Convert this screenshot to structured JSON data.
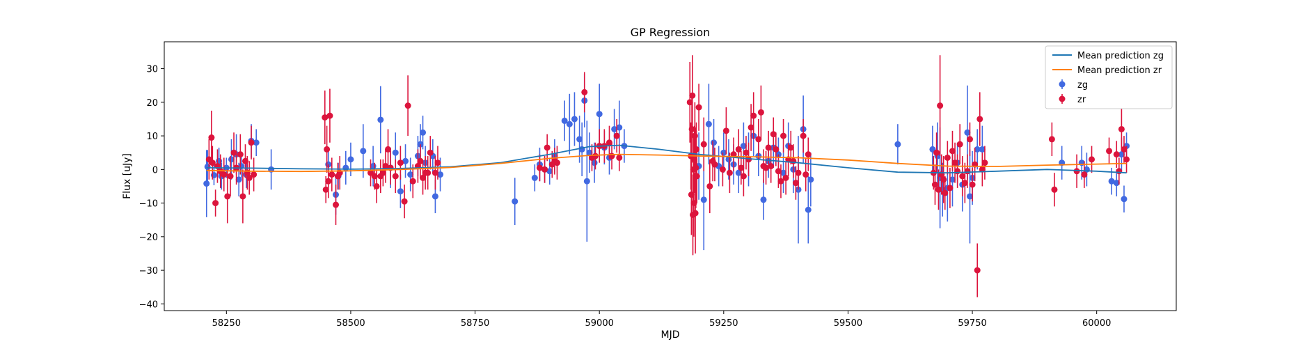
{
  "chart_data": {
    "type": "scatter",
    "title": "GP Regression",
    "xlabel": "MJD",
    "ylabel": "Flux [uJy]",
    "xlim": [
      58125,
      60160
    ],
    "ylim": [
      -42,
      38
    ],
    "grid": false,
    "legend_placement": "top-right",
    "x_ticks": [
      58250,
      58500,
      58750,
      59000,
      59250,
      59500,
      59750,
      60000
    ],
    "x_tick_labels": [
      "58250",
      "58500",
      "58750",
      "59000",
      "59250",
      "59500",
      "59750",
      "60000"
    ],
    "y_ticks": [
      -40,
      -30,
      -20,
      -10,
      0,
      10,
      20,
      30
    ],
    "y_tick_labels": [
      "−40",
      "−30",
      "−20",
      "−10",
      "0",
      "10",
      "20",
      "30"
    ],
    "colors": {
      "zg_points": "#4169e1",
      "zr_points": "#dc143c",
      "zg_line": "#1f77b4",
      "zr_line": "#ff7f0e"
    },
    "lines": [
      {
        "name": "Mean prediction zg",
        "color": "#1f77b4",
        "x": [
          58210,
          58300,
          58400,
          58500,
          58600,
          58700,
          58800,
          58900,
          58980,
          59040,
          59120,
          59200,
          59300,
          59400,
          59500,
          59600,
          59700,
          59800,
          59900,
          60000,
          60060
        ],
        "y": [
          0.5,
          0.4,
          0.2,
          0.1,
          0.3,
          0.8,
          2.0,
          4.5,
          6.8,
          7.2,
          6.0,
          4.5,
          3.2,
          2.0,
          0.5,
          -0.8,
          -1.0,
          -0.5,
          0.0,
          -0.5,
          -1.0
        ]
      },
      {
        "name": "Mean prediction zr",
        "color": "#ff7f0e",
        "x": [
          58210,
          58300,
          58400,
          58500,
          58600,
          58700,
          58800,
          58900,
          58980,
          59040,
          59120,
          59200,
          59300,
          59400,
          59500,
          59600,
          59700,
          59800,
          59900,
          60000,
          60060
        ],
        "y": [
          -0.3,
          -0.5,
          -0.6,
          -0.4,
          0.0,
          0.6,
          1.8,
          3.3,
          4.2,
          4.5,
          4.3,
          4.0,
          3.8,
          3.5,
          2.8,
          1.8,
          1.0,
          0.9,
          1.3,
          1.6,
          1.8
        ]
      }
    ],
    "series": [
      {
        "name": "zg",
        "color": "#4169e1",
        "x": [
          58210,
          58212,
          58225,
          58235,
          58240,
          58250,
          58260,
          58270,
          58275,
          58280,
          58290,
          58300,
          58310,
          58340,
          58455,
          58470,
          58475,
          58490,
          58500,
          58525,
          58545,
          58560,
          58580,
          58590,
          58600,
          58610,
          58620,
          58635,
          58640,
          58645,
          58650,
          58665,
          58670,
          58680,
          58830,
          58870,
          58880,
          58890,
          58900,
          58910,
          58930,
          58940,
          58950,
          58960,
          58965,
          58970,
          58975,
          58980,
          58990,
          59000,
          59010,
          59020,
          59030,
          59040,
          59050,
          59200,
          59210,
          59220,
          59230,
          59240,
          59250,
          59260,
          59270,
          59280,
          59290,
          59300,
          59310,
          59320,
          59330,
          59340,
          59350,
          59360,
          59370,
          59380,
          59390,
          59400,
          59410,
          59420,
          59425,
          59600,
          59670,
          59680,
          59685,
          59690,
          59700,
          59710,
          59720,
          59730,
          59740,
          59745,
          59750,
          59760,
          59770,
          59930,
          59970,
          59980,
          60030,
          60040,
          60050,
          60055,
          60060
        ],
        "y": [
          -4.2,
          0.8,
          -1.7,
          2.5,
          -2.0,
          0.5,
          3.0,
          4.5,
          -3.0,
          1.0,
          -1.5,
          8.5,
          8.0,
          0.0,
          1.5,
          -7.5,
          -2.0,
          0.5,
          3.0,
          5.5,
          1.0,
          14.8,
          0.5,
          5.0,
          -6.5,
          2.5,
          -1.5,
          4.0,
          7.5,
          11.0,
          2.0,
          4.0,
          -8.0,
          -1.5,
          -9.5,
          -2.5,
          1.5,
          0.0,
          -0.5,
          4.0,
          14.5,
          13.5,
          15.0,
          9.0,
          6.0,
          20.5,
          -3.5,
          5.0,
          2.0,
          16.5,
          6.5,
          3.5,
          12.0,
          12.5,
          7.0,
          1.0,
          -9.0,
          13.5,
          8.0,
          1.0,
          5.0,
          3.0,
          1.5,
          -1.0,
          7.0,
          3.0,
          10.0,
          4.0,
          -9.0,
          2.5,
          6.5,
          4.5,
          -1.0,
          7.0,
          0.0,
          -6.0,
          12.0,
          -12.0,
          -3.0,
          7.5,
          6.0,
          4.0,
          -2.5,
          -6.0,
          -5.5,
          -3.0,
          2.0,
          -4.5,
          11.0,
          -8.0,
          -2.5,
          6.0,
          6.0,
          2.0,
          2.0,
          0.0,
          -3.5,
          -4.0,
          4.5,
          -8.8,
          7.0
        ],
        "err": [
          10,
          5,
          3,
          4,
          4,
          3,
          6,
          6,
          5,
          4,
          4,
          5,
          4,
          6,
          5,
          6,
          4,
          5,
          5,
          8,
          6,
          10,
          6,
          6,
          5,
          5,
          5,
          6,
          6,
          5,
          5,
          5,
          5,
          5,
          7,
          4,
          5,
          4,
          4,
          5,
          6,
          9,
          8,
          7,
          8,
          8,
          18,
          6,
          6,
          9,
          5,
          5,
          6,
          8,
          5,
          10,
          15,
          12,
          7,
          6,
          6,
          6,
          6,
          6,
          7,
          8,
          6,
          6,
          6,
          5,
          6,
          5,
          6,
          7,
          7,
          16,
          10,
          10,
          8,
          6,
          7,
          10,
          15,
          8,
          10,
          8,
          6,
          8,
          14,
          14,
          8,
          6,
          7,
          5,
          5,
          5,
          4,
          4,
          5,
          4,
          4
        ]
      },
      {
        "name": "zr",
        "color": "#dc143c",
        "x": [
          58215,
          58220,
          58222,
          58228,
          58232,
          58238,
          58245,
          58252,
          58258,
          58265,
          58270,
          58278,
          58283,
          58288,
          58292,
          58296,
          58300,
          58305,
          58448,
          58450,
          58452,
          58455,
          58458,
          58462,
          58470,
          58474,
          58478,
          58540,
          58548,
          58552,
          58560,
          58565,
          58570,
          58575,
          58580,
          58590,
          58600,
          58608,
          58615,
          58625,
          58635,
          58640,
          58645,
          58650,
          58655,
          58660,
          58670,
          58675,
          58880,
          58890,
          58895,
          58905,
          58910,
          58915,
          58970,
          58985,
          58992,
          59000,
          59010,
          59020,
          59025,
          59035,
          59040,
          59182,
          59184,
          59185,
          59186,
          59187,
          59188,
          59189,
          59190,
          59191,
          59192,
          59193,
          59194,
          59195,
          59196,
          59200,
          59210,
          59222,
          59228,
          59232,
          59248,
          59255,
          59262,
          59270,
          59280,
          59285,
          59290,
          59295,
          59300,
          59305,
          59310,
          59320,
          59325,
          59330,
          59335,
          59340,
          59345,
          59350,
          59355,
          59360,
          59365,
          59370,
          59375,
          59380,
          59385,
          59390,
          59395,
          59400,
          59410,
          59415,
          59420,
          59672,
          59675,
          59678,
          59682,
          59685,
          59688,
          59692,
          59695,
          59700,
          59705,
          59710,
          59715,
          59720,
          59725,
          59730,
          59735,
          59740,
          59745,
          59750,
          59755,
          59760,
          59765,
          59770,
          59775,
          59910,
          59915,
          59960,
          59975,
          59990,
          60025,
          60040,
          60045,
          60050,
          60055,
          60060
        ],
        "y": [
          3.0,
          9.5,
          2.0,
          -10.0,
          1.0,
          -0.5,
          -1.5,
          -8.0,
          -2.0,
          5.0,
          0.5,
          4.5,
          -8.0,
          2.5,
          -1.0,
          -2.5,
          8.0,
          -1.5,
          15.5,
          -6.0,
          6.0,
          -3.5,
          16.0,
          -1.5,
          -10.5,
          -2.0,
          -1.0,
          -1.0,
          -2.0,
          -5.0,
          -2.0,
          -1.0,
          1.0,
          6.0,
          0.5,
          -2.0,
          2.0,
          -9.5,
          19.0,
          -3.5,
          1.0,
          2.5,
          -2.5,
          -1.0,
          -1.0,
          5.0,
          -1.0,
          2.0,
          0.5,
          0.0,
          6.5,
          1.5,
          2.5,
          2.0,
          23.0,
          3.5,
          4.0,
          7.0,
          7.0,
          8.0,
          4.0,
          10.0,
          3.5,
          20.0,
          4.0,
          -7.5,
          12.0,
          22.0,
          -13.5,
          0.0,
          -10.0,
          3.0,
          10.0,
          -13.0,
          0.5,
          6.0,
          -2.0,
          18.5,
          7.5,
          -5.0,
          2.5,
          1.5,
          0.0,
          11.5,
          -1.0,
          4.5,
          6.0,
          0.5,
          -2.0,
          5.0,
          3.0,
          12.5,
          16.0,
          9.0,
          17.0,
          1.0,
          0.5,
          6.5,
          1.0,
          10.5,
          6.0,
          -0.5,
          -3.5,
          10.0,
          -2.5,
          3.0,
          6.5,
          2.5,
          -4.0,
          -1.0,
          10.0,
          -1.5,
          4.5,
          -1.0,
          -4.5,
          5.0,
          -6.0,
          19.0,
          -1.5,
          -3.0,
          -7.0,
          3.5,
          -5.5,
          5.5,
          2.0,
          -0.5,
          7.5,
          -2.0,
          -4.0,
          -0.5,
          9.0,
          -4.5,
          1.5,
          -30.0,
          15.0,
          0.0,
          2.0,
          9.0,
          -6.0,
          -0.5,
          -1.5,
          3.0,
          5.5,
          4.5,
          -0.5,
          12.0,
          6.0,
          3.0
        ],
        "err": [
          6,
          8,
          5,
          4,
          5,
          5,
          5,
          8,
          6,
          6,
          5,
          6,
          8,
          5,
          5,
          5,
          5,
          5,
          8,
          4,
          7,
          5,
          8,
          5,
          6,
          4,
          5,
          4,
          4,
          5,
          5,
          4,
          5,
          6,
          5,
          5,
          5,
          5,
          9,
          5,
          5,
          5,
          5,
          5,
          5,
          5,
          5,
          5,
          4,
          4,
          4,
          4,
          4,
          5,
          6,
          4,
          4,
          5,
          5,
          5,
          4,
          5,
          4,
          12,
          10,
          12,
          10,
          12,
          12,
          10,
          10,
          10,
          10,
          12,
          12,
          8,
          8,
          7,
          8,
          8,
          6,
          5,
          5,
          7,
          6,
          5,
          6,
          5,
          6,
          5,
          5,
          7,
          7,
          6,
          8,
          5,
          5,
          5,
          5,
          5,
          5,
          5,
          5,
          5,
          5,
          5,
          5,
          5,
          5,
          5,
          5,
          5,
          5,
          5,
          6,
          6,
          6,
          15,
          6,
          7,
          5,
          5,
          6,
          6,
          6,
          5,
          6,
          6,
          6,
          5,
          5,
          5,
          5,
          8,
          8,
          5,
          5,
          5,
          5,
          5,
          4,
          4,
          4,
          4,
          4,
          6,
          4,
          4
        ]
      }
    ],
    "legend": [
      {
        "label": "Mean prediction zg",
        "kind": "line",
        "color": "#1f77b4"
      },
      {
        "label": "Mean prediction zr",
        "kind": "line",
        "color": "#ff7f0e"
      },
      {
        "label": "zg",
        "kind": "marker",
        "color": "#4169e1"
      },
      {
        "label": "zr",
        "kind": "marker",
        "color": "#dc143c"
      }
    ]
  }
}
